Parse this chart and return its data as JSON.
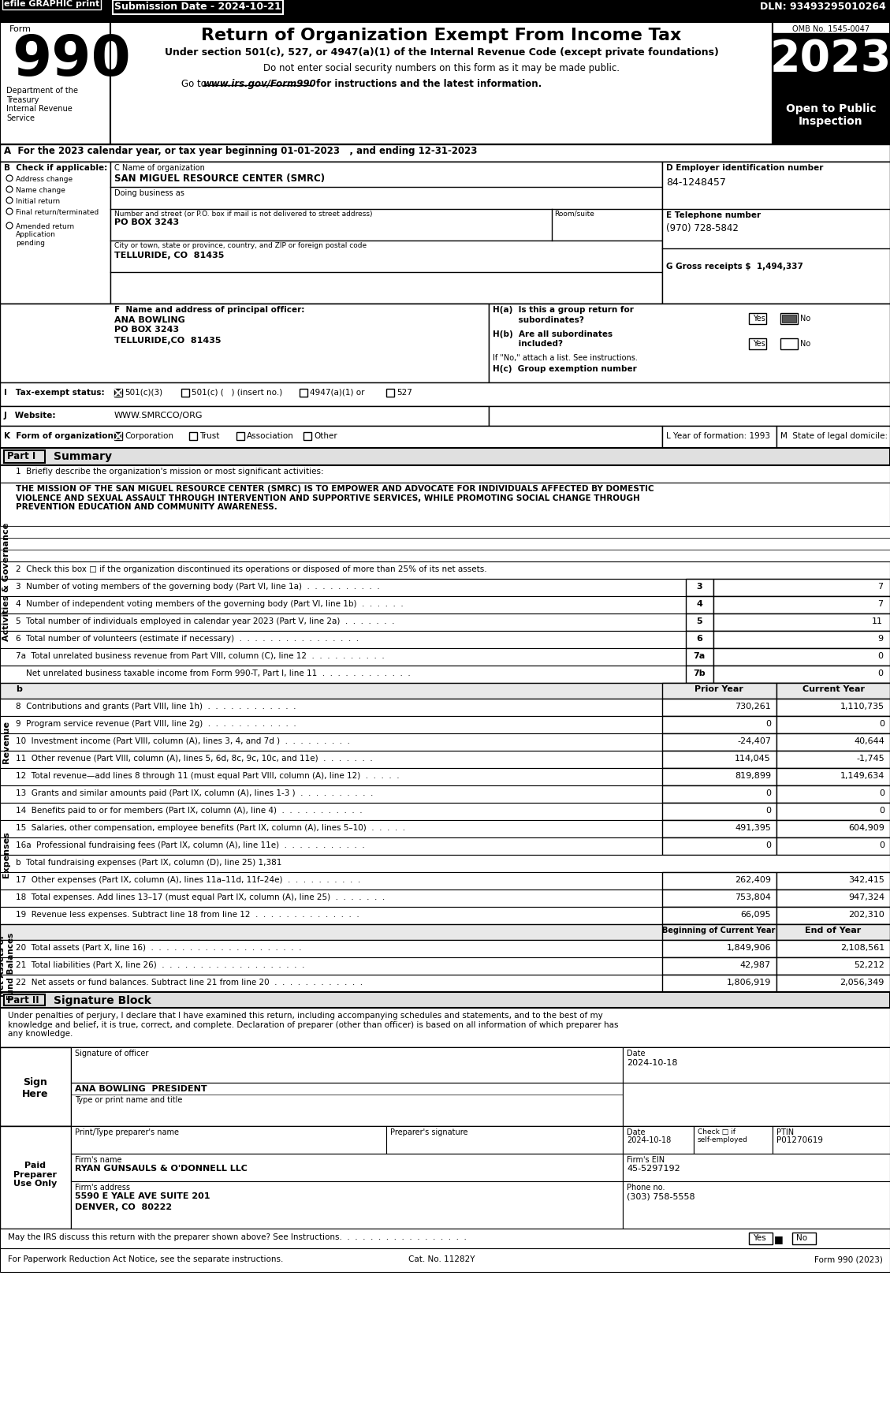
{
  "title": "Return of Organization Exempt From Income Tax",
  "subtitle1": "Under section 501(c), 527, or 4947(a)(1) of the Internal Revenue Code (except private foundations)",
  "subtitle2": "Do not enter social security numbers on this form as it may be made public.",
  "subtitle3_pre": "Go to ",
  "subtitle3_url": "www.irs.gov/Form990",
  "subtitle3_post": " for instructions and the latest information.",
  "efile_text": "efile GRAPHIC print",
  "submission_date": "Submission Date - 2024-10-21",
  "dln": "DLN: 93493295010264",
  "form_number": "990",
  "omb": "OMB No. 1545-0047",
  "year": "2023",
  "open_to_public": "Open to Public\nInspection",
  "dept": "Department of the\nTreasury\nInternal Revenue\nService",
  "line_a": "A  For the 2023 calendar year, or tax year beginning 01-01-2023   , and ending 12-31-2023",
  "org_name": "SAN MIGUEL RESOURCE CENTER (SMRC)",
  "ein": "84-1248457",
  "phone": "(970) 728-5842",
  "gross_receipts": "1,494,337",
  "officer_name": "ANA BOWLING",
  "officer_addr1": "PO BOX 3243",
  "officer_addr2": "TELLURIDE,CO  81435",
  "mission": "THE MISSION OF THE SAN MIGUEL RESOURCE CENTER (SMRC) IS TO EMPOWER AND ADVOCATE FOR INDIVIDUALS AFFECTED BY DOMESTIC\nVIOLENCE AND SEXUAL ASSAULT THROUGH INTERVENTION AND SUPPORTIVE SERVICES, WHILE PROMOTING SOCIAL CHANGE THROUGH\nPREVENTION EDUCATION AND COMMUNITY AWARENESS.",
  "sig_note": "Under penalties of perjury, I declare that I have examined this return, including accompanying schedules and statements, and to the best of my\nknowledge and belief, it is true, correct, and complete. Declaration of preparer (other than officer) is based on all information of which preparer has\nany knowledge.",
  "sig_date_val": "2024-10-18",
  "prep_date_val": "2024-10-18",
  "prep_ptin_val": "P01270619",
  "prep_firm_val": "RYAN GUNSAULS & O'DONNELL LLC",
  "prep_firm_ein_val": "45-5297192",
  "prep_addr_val": "5590 E YALE AVE SUITE 201",
  "prep_city_val": "DENVER, CO  80222",
  "prep_phone_val": "(303) 758-5558",
  "bg_color": "#ffffff"
}
